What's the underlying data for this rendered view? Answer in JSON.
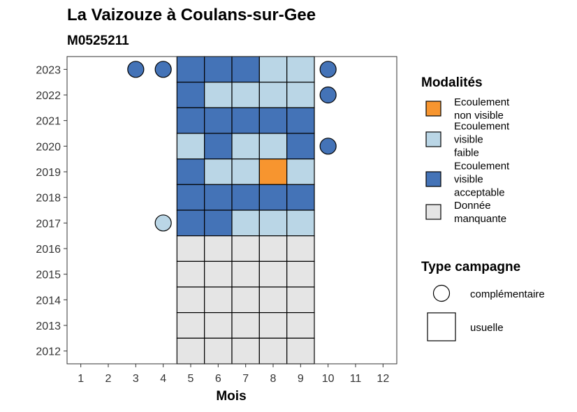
{
  "chart_data": {
    "type": "heatmap",
    "title": "La Vaizouze à Coulans-sur-Gee",
    "subtitle": "M0525211",
    "xlabel": "Mois",
    "ylabel": "",
    "x_ticks": [
      "1",
      "2",
      "3",
      "4",
      "5",
      "6",
      "7",
      "8",
      "9",
      "10",
      "11",
      "12"
    ],
    "y_ticks": [
      "2012",
      "2013",
      "2014",
      "2015",
      "2016",
      "2017",
      "2018",
      "2019",
      "2020",
      "2021",
      "2022",
      "2023"
    ],
    "xlim": [
      0.5,
      12.5
    ],
    "ylim": [
      2011.5,
      2023.5
    ],
    "grid": false,
    "legend_position": "right",
    "colors": {
      "non_visible": "#F7952F",
      "faible": "#BAD6E6",
      "acceptable": "#4473B7",
      "manquante": "#E5E5E5"
    },
    "legend_modalites": {
      "title": "Modalités",
      "items": [
        {
          "key": "non_visible",
          "lines": [
            "Ecoulement",
            "non visible"
          ]
        },
        {
          "key": "faible",
          "lines": [
            "Ecoulement",
            "visible",
            "faible"
          ]
        },
        {
          "key": "acceptable",
          "lines": [
            "Ecoulement",
            "visible",
            "acceptable"
          ]
        },
        {
          "key": "manquante",
          "lines": [
            "Donnée",
            "manquante"
          ]
        }
      ]
    },
    "legend_campagne": {
      "title": "Type campagne",
      "items": [
        {
          "shape": "circle",
          "label": "complémentaire"
        },
        {
          "shape": "square",
          "label": "usuelle"
        }
      ]
    },
    "usuelle": [
      {
        "year": 2023,
        "months": [
          "acceptable",
          "acceptable",
          "acceptable",
          "faible",
          "faible"
        ]
      },
      {
        "year": 2022,
        "months": [
          "acceptable",
          "faible",
          "faible",
          "faible",
          "faible"
        ]
      },
      {
        "year": 2021,
        "months": [
          "acceptable",
          "acceptable",
          "acceptable",
          "acceptable",
          "acceptable"
        ]
      },
      {
        "year": 2020,
        "months": [
          "faible",
          "acceptable",
          "faible",
          "faible",
          "acceptable"
        ]
      },
      {
        "year": 2019,
        "months": [
          "acceptable",
          "faible",
          "faible",
          "non_visible",
          "faible"
        ]
      },
      {
        "year": 2018,
        "months": [
          "acceptable",
          "acceptable",
          "acceptable",
          "acceptable",
          "acceptable"
        ]
      },
      {
        "year": 2017,
        "months": [
          "acceptable",
          "acceptable",
          "faible",
          "faible",
          "faible"
        ]
      },
      {
        "year": 2016,
        "months": [
          "manquante",
          "manquante",
          "manquante",
          "manquante",
          "manquante"
        ]
      },
      {
        "year": 2015,
        "months": [
          "manquante",
          "manquante",
          "manquante",
          "manquante",
          "manquante"
        ]
      },
      {
        "year": 2014,
        "months": [
          "manquante",
          "manquante",
          "manquante",
          "manquante",
          "manquante"
        ]
      },
      {
        "year": 2013,
        "months": [
          "manquante",
          "manquante",
          "manquante",
          "manquante",
          "manquante"
        ]
      },
      {
        "year": 2012,
        "months": [
          "manquante",
          "manquante",
          "manquante",
          "manquante",
          "manquante"
        ]
      }
    ],
    "usuelle_months": [
      5,
      6,
      7,
      8,
      9
    ],
    "complementaire": [
      {
        "year": 2023,
        "month": 3,
        "value": "acceptable"
      },
      {
        "year": 2023,
        "month": 4,
        "value": "acceptable"
      },
      {
        "year": 2023,
        "month": 10,
        "value": "acceptable"
      },
      {
        "year": 2022,
        "month": 10,
        "value": "acceptable"
      },
      {
        "year": 2020,
        "month": 10,
        "value": "acceptable"
      },
      {
        "year": 2017,
        "month": 4,
        "value": "faible"
      }
    ]
  }
}
